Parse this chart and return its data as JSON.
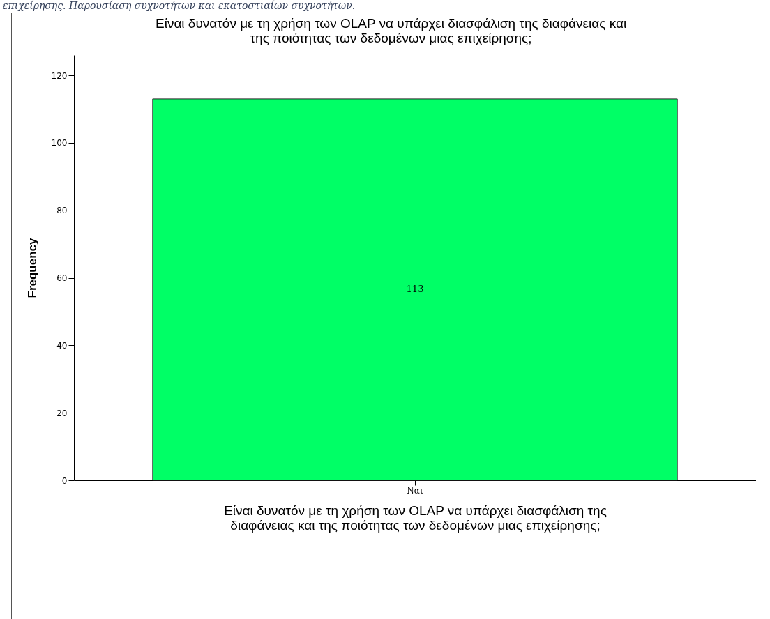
{
  "chart_data": {
    "type": "bar",
    "title": "Είναι δυνατόν με τη χρήση των OLAP να υπάρχει διασφάλιση της διαφάνειας και της ποιότητας των δεδομένων μιας επιχείρησης;",
    "xlabel": "Είναι δυνατόν με τη χρήση των OLAP να υπάρχει διασφάλιση της διαφάνειας και της ποιότητας των δεδομένων μιας επιχείρησης;",
    "ylabel": "Frequency",
    "annotations": [
      "επιχείρησης. Παρουσίαση συχνοτήτων και εκατοστιαίων συχνοτήτων."
    ],
    "categories": [
      "Ναι"
    ],
    "values": [
      113
    ],
    "color": "#00ff66",
    "data_labels": true,
    "ylim": [
      0,
      126
    ],
    "yticks": [
      0,
      20,
      40,
      60,
      80,
      100,
      120
    ],
    "grid": false
  }
}
